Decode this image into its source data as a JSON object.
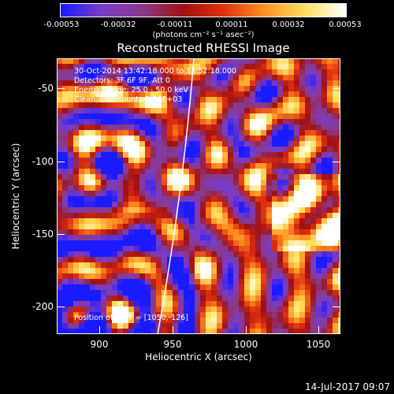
{
  "colorbar": {
    "ticks": [
      "-0.00053",
      "-0.00032",
      "-0.00011",
      "0.00011",
      "0.00032",
      "0.00053"
    ],
    "units": "(photons cm⁻² s⁻¹ asec⁻²)",
    "colors": [
      "#1a1aff",
      "#7a3cc8",
      "#8a3a8a",
      "#a01010",
      "#e03010",
      "#ff9020",
      "#ffe060",
      "#ffffff"
    ]
  },
  "chart_data": {
    "type": "heatmap",
    "title": "Reconstructed RHESSI Image",
    "xlabel": "Heliocentric X (arcsec)",
    "ylabel": "Heliocentric Y (arcsec)",
    "xlim": [
      870,
      1063
    ],
    "ylim": [
      -223,
      -35
    ],
    "x_ticks": [
      900,
      950,
      1000,
      1050
    ],
    "y_ticks": [
      -50,
      -100,
      -150,
      -200
    ],
    "value_range": [
      -0.00053,
      0.00053
    ],
    "peak": [
      1050,
      -126
    ]
  },
  "info": {
    "time": "30-Oct-2014 13:42:18.000 to 13:52:18.000",
    "detectors": "Detectors: 3F 6F 9F, Att 0",
    "energy": "Energy Range: 25.0 - 50.0 keV",
    "clean": "Clean     Total counts:5.24E+03",
    "peak": "Position of Peak = [1050,-126]"
  },
  "footer": {
    "date": "14-Jul-2017 09:07"
  }
}
